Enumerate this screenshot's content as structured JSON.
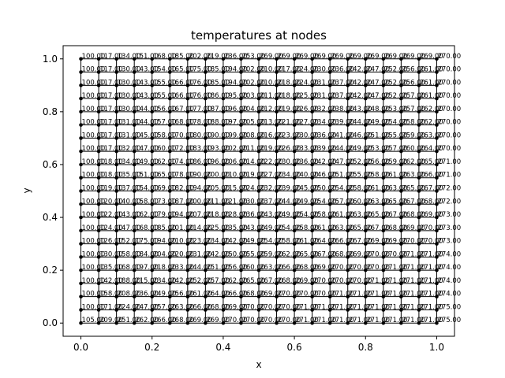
{
  "chart_data": {
    "type": "scatter",
    "title": "temperatures at nodes",
    "xlabel": "x",
    "ylabel": "y",
    "xlim": [
      -0.05,
      1.05
    ],
    "ylim": [
      -0.05,
      1.05
    ],
    "xticks": [
      "0.0",
      "0.2",
      "0.4",
      "0.6",
      "0.8",
      "1.0"
    ],
    "yticks": [
      "0.0",
      "0.2",
      "0.4",
      "0.6",
      "0.8",
      "1.0"
    ],
    "xtick_values": [
      0,
      0.2,
      0.4,
      0.6,
      0.8,
      1.0
    ],
    "ytick_values": [
      0,
      0.2,
      0.4,
      0.6,
      0.8,
      1.0
    ],
    "grid": false,
    "nodes_per_side": 21,
    "x": [
      0.0,
      0.05,
      0.1,
      0.15,
      0.2,
      0.25,
      0.3,
      0.35,
      0.4,
      0.45,
      0.5,
      0.55,
      0.6,
      0.65,
      0.7,
      0.75,
      0.8,
      0.85,
      0.9,
      0.95,
      1.0
    ],
    "y": [
      0.0,
      0.05,
      0.1,
      0.15,
      0.2,
      0.25,
      0.3,
      0.35,
      0.4,
      0.45,
      0.5,
      0.55,
      0.6,
      0.65,
      0.7,
      0.75,
      0.8,
      0.85,
      0.9,
      0.95,
      1.0
    ],
    "rows": [
      [
        "105.00",
        "209.00",
        "251.00",
        "262.00",
        "266.00",
        "268.00",
        "269.00",
        "269.00",
        "270.00",
        "270.00",
        "270.00",
        "270.00",
        "271.00",
        "271.00",
        "271.00",
        "271.00",
        "271.00",
        "271.00",
        "271.00",
        "271.00",
        "275.00"
      ],
      [
        "100.00",
        "171.00",
        "224.00",
        "247.00",
        "257.00",
        "263.00",
        "266.00",
        "268.00",
        "269.00",
        "270.00",
        "270.00",
        "270.00",
        "271.00",
        "271.00",
        "271.00",
        "271.00",
        "271.00",
        "271.00",
        "271.00",
        "271.00",
        "275.00"
      ],
      [
        "100.00",
        "158.00",
        "208.00",
        "236.00",
        "249.00",
        "256.00",
        "261.00",
        "264.00",
        "266.00",
        "268.00",
        "269.00",
        "270.00",
        "270.00",
        "270.00",
        "271.00",
        "271.00",
        "271.00",
        "271.00",
        "271.00",
        "271.00",
        "274.00"
      ],
      [
        "100.00",
        "142.00",
        "188.00",
        "215.00",
        "234.00",
        "242.00",
        "252.00",
        "257.00",
        "262.00",
        "265.00",
        "267.00",
        "268.00",
        "269.00",
        "270.00",
        "270.00",
        "270.00",
        "271.00",
        "271.00",
        "271.00",
        "271.00",
        "274.00"
      ],
      [
        "100.00",
        "135.00",
        "168.00",
        "197.00",
        "218.00",
        "233.00",
        "244.00",
        "251.00",
        "256.00",
        "260.00",
        "263.00",
        "266.00",
        "268.00",
        "269.00",
        "270.00",
        "270.00",
        "270.00",
        "271.00",
        "271.00",
        "271.00",
        "274.00"
      ],
      [
        "100.00",
        "130.00",
        "158.00",
        "184.00",
        "204.00",
        "220.00",
        "231.00",
        "242.00",
        "250.00",
        "255.00",
        "259.00",
        "262.00",
        "265.00",
        "267.00",
        "268.00",
        "269.00",
        "270.00",
        "270.00",
        "271.00",
        "271.00",
        "274.00"
      ],
      [
        "100.00",
        "126.00",
        "152.00",
        "175.00",
        "194.00",
        "210.00",
        "223.00",
        "234.00",
        "242.00",
        "249.00",
        "254.00",
        "258.00",
        "261.00",
        "264.00",
        "266.00",
        "267.00",
        "269.00",
        "269.00",
        "270.00",
        "270.00",
        "273.00"
      ],
      [
        "100.00",
        "124.00",
        "147.00",
        "168.00",
        "185.00",
        "201.00",
        "214.00",
        "225.00",
        "235.00",
        "243.00",
        "249.00",
        "254.00",
        "258.00",
        "261.00",
        "263.00",
        "265.00",
        "267.00",
        "268.00",
        "269.00",
        "270.00",
        "273.00"
      ],
      [
        "100.00",
        "122.00",
        "143.00",
        "162.00",
        "179.00",
        "194.00",
        "207.00",
        "218.00",
        "228.00",
        "236.00",
        "243.00",
        "249.00",
        "254.00",
        "258.00",
        "261.00",
        "263.00",
        "265.00",
        "267.00",
        "268.00",
        "269.00",
        "273.00"
      ],
      [
        "100.00",
        "120.00",
        "140.00",
        "158.00",
        "173.00",
        "187.00",
        "200.00",
        "211.00",
        "221.00",
        "230.00",
        "237.00",
        "244.00",
        "249.00",
        "254.00",
        "257.00",
        "260.00",
        "263.00",
        "265.00",
        "267.00",
        "268.00",
        "272.00"
      ],
      [
        "100.00",
        "119.00",
        "137.00",
        "154.00",
        "169.00",
        "182.00",
        "194.00",
        "205.00",
        "215.00",
        "224.00",
        "232.00",
        "239.00",
        "245.00",
        "250.00",
        "254.00",
        "258.00",
        "261.00",
        "263.00",
        "265.00",
        "267.00",
        "272.00"
      ],
      [
        "100.00",
        "118.00",
        "135.00",
        "151.00",
        "165.00",
        "178.00",
        "190.00",
        "200.00",
        "210.00",
        "219.00",
        "227.00",
        "234.00",
        "240.00",
        "246.00",
        "251.00",
        "255.00",
        "258.00",
        "261.00",
        "263.00",
        "266.00",
        "271.00"
      ],
      [
        "100.00",
        "118.00",
        "134.00",
        "149.00",
        "162.00",
        "174.00",
        "186.00",
        "196.00",
        "206.00",
        "214.00",
        "222.00",
        "230.00",
        "236.00",
        "242.00",
        "247.00",
        "252.00",
        "256.00",
        "259.00",
        "262.00",
        "265.00",
        "271.00"
      ],
      [
        "100.00",
        "117.00",
        "132.00",
        "147.00",
        "160.00",
        "172.00",
        "183.00",
        "193.00",
        "202.00",
        "211.00",
        "219.00",
        "226.00",
        "233.00",
        "239.00",
        "244.00",
        "249.00",
        "253.00",
        "257.00",
        "260.00",
        "264.00",
        "270.00"
      ],
      [
        "100.00",
        "117.00",
        "131.00",
        "145.00",
        "158.00",
        "170.00",
        "180.00",
        "190.00",
        "199.00",
        "208.00",
        "216.00",
        "223.00",
        "230.00",
        "236.00",
        "241.00",
        "246.00",
        "251.00",
        "255.00",
        "259.00",
        "263.00",
        "270.00"
      ],
      [
        "100.00",
        "117.00",
        "131.00",
        "144.00",
        "157.00",
        "168.00",
        "178.00",
        "188.00",
        "197.00",
        "205.00",
        "213.00",
        "221.00",
        "227.00",
        "234.00",
        "239.00",
        "244.00",
        "249.00",
        "254.00",
        "258.00",
        "262.00",
        "270.00"
      ],
      [
        "100.00",
        "117.00",
        "130.00",
        "144.00",
        "156.00",
        "167.00",
        "177.00",
        "187.00",
        "196.00",
        "204.00",
        "212.00",
        "219.00",
        "226.00",
        "232.00",
        "238.00",
        "243.00",
        "248.00",
        "253.00",
        "257.00",
        "262.00",
        "270.00"
      ],
      [
        "100.00",
        "117.00",
        "130.00",
        "143.00",
        "155.00",
        "166.00",
        "176.00",
        "186.00",
        "195.00",
        "203.00",
        "211.00",
        "218.00",
        "225.00",
        "231.00",
        "237.00",
        "242.00",
        "247.00",
        "252.00",
        "257.00",
        "261.00",
        "270.00"
      ],
      [
        "100.00",
        "117.00",
        "130.00",
        "143.00",
        "155.00",
        "166.00",
        "176.00",
        "185.00",
        "194.00",
        "202.00",
        "210.00",
        "218.00",
        "224.00",
        "231.00",
        "237.00",
        "242.00",
        "247.00",
        "252.00",
        "256.00",
        "261.00",
        "270.00"
      ],
      [
        "100.00",
        "117.00",
        "130.00",
        "143.00",
        "154.00",
        "165.00",
        "175.00",
        "185.00",
        "194.00",
        "202.00",
        "210.00",
        "217.00",
        "224.00",
        "230.00",
        "236.00",
        "242.00",
        "247.00",
        "252.00",
        "256.00",
        "261.00",
        "270.00"
      ],
      [
        "100.00",
        "117.00",
        "134.00",
        "151.00",
        "168.00",
        "185.00",
        "202.00",
        "219.00",
        "236.00",
        "253.00",
        "269.00",
        "269.00",
        "269.00",
        "269.00",
        "269.00",
        "269.00",
        "269.00",
        "269.00",
        "269.00",
        "269.00",
        "270.00"
      ]
    ]
  }
}
